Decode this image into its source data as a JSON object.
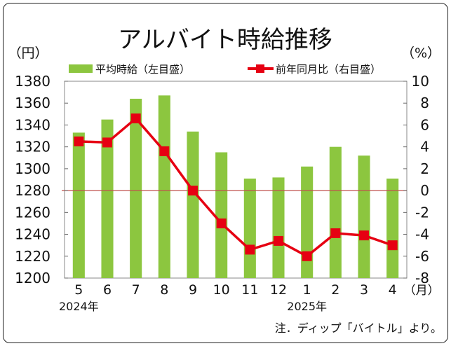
{
  "chart_data": {
    "type": "bar+line",
    "title": "アルバイト時給推移",
    "left_unit": "（円）",
    "right_unit": "（%）",
    "categories": [
      "5",
      "6",
      "7",
      "8",
      "9",
      "10",
      "11",
      "12",
      "1",
      "2",
      "3",
      "4"
    ],
    "category_suffix": "（月）",
    "year_labels": [
      {
        "index": 0,
        "label": "2024年"
      },
      {
        "index": 8,
        "label": "2025年"
      }
    ],
    "series": [
      {
        "name": "平均時給（左目盛）",
        "type": "bar",
        "axis": "left",
        "color": "#8cc63f",
        "values": [
          1333,
          1345,
          1364,
          1367,
          1334,
          1315,
          1291,
          1292,
          1302,
          1320,
          1312,
          1291
        ]
      },
      {
        "name": "前年同月比（右目盛）",
        "type": "line",
        "axis": "right",
        "color": "#e60012",
        "values": [
          4.5,
          4.4,
          6.6,
          3.6,
          0.0,
          -3.0,
          -5.4,
          -4.6,
          -6.0,
          -3.9,
          -4.1,
          -5.0
        ]
      }
    ],
    "y_left": {
      "min": 1200,
      "max": 1380,
      "step": 20,
      "ticks": [
        "1200",
        "1220",
        "1240",
        "1260",
        "1280",
        "1300",
        "1320",
        "1340",
        "1360",
        "1380"
      ]
    },
    "y_right": {
      "min": -8,
      "max": 10,
      "step": 2,
      "ticks": [
        "-8",
        "-6",
        "-4",
        "-2",
        "0",
        "2",
        "4",
        "6",
        "8",
        "10"
      ]
    },
    "reference_line": {
      "axis": "right",
      "value": 0,
      "color": "#c0504d"
    },
    "grid": false,
    "legend_position": "top",
    "note": "注．ディップ「バイトル」より。"
  }
}
